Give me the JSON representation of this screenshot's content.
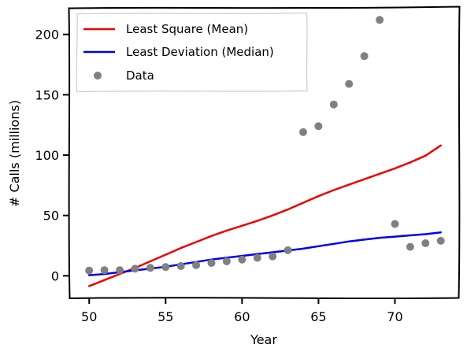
{
  "chart_data": {
    "type": "scatter",
    "title": "",
    "xlabel": "Year",
    "ylabel": "# Calls (millions)",
    "xlim": [
      48.7,
      74.2
    ],
    "ylim": [
      -18,
      222
    ],
    "xticks": [
      50,
      55,
      60,
      65,
      70
    ],
    "yticks": [
      0,
      50,
      100,
      150,
      200
    ],
    "grid": false,
    "legend_position": "top-left",
    "series": [
      {
        "name": "Least Square (Mean)",
        "kind": "line",
        "color": "#ee0000",
        "x": [
          50,
          51,
          52,
          53,
          54,
          55,
          56,
          57,
          58,
          59,
          60,
          61,
          62,
          63,
          64,
          65,
          66,
          67,
          68,
          69,
          70,
          71,
          72,
          73
        ],
        "y": [
          -8.5,
          -3.5,
          1.5,
          6.5,
          12,
          17.5,
          23,
          28,
          33,
          37.5,
          41.5,
          45.5,
          50,
          55,
          60.5,
          66,
          71,
          75.5,
          80,
          84.5,
          89,
          94,
          99.5,
          108
        ]
      },
      {
        "name": "Least Deviation (Median)",
        "kind": "line",
        "color": "#0000ee",
        "x": [
          50,
          51,
          52,
          53,
          54,
          55,
          56,
          57,
          58,
          59,
          60,
          61,
          62,
          63,
          64,
          65,
          66,
          67,
          68,
          69,
          70,
          71,
          72,
          73
        ],
        "y": [
          0.5,
          1.5,
          3,
          4.5,
          6,
          7.5,
          9.5,
          11.5,
          13.5,
          15,
          16.5,
          18,
          19.5,
          21,
          22.5,
          24.5,
          26.5,
          28.5,
          30,
          31.5,
          32.5,
          33.5,
          34.5,
          36
        ]
      },
      {
        "name": "Data",
        "kind": "scatter",
        "color": "#808080",
        "x": [
          50,
          51,
          52,
          53,
          54,
          55,
          56,
          57,
          58,
          59,
          60,
          61,
          62,
          63,
          64,
          65,
          66,
          67,
          68,
          69,
          70,
          71,
          72,
          73
        ],
        "y": [
          4.4,
          4.7,
          4.7,
          5.9,
          6.6,
          7.3,
          8.1,
          8.8,
          10.6,
          12,
          13.5,
          14.9,
          16.1,
          21.2,
          119,
          124,
          142,
          159,
          182,
          212,
          43,
          24,
          27,
          29
        ]
      }
    ]
  }
}
